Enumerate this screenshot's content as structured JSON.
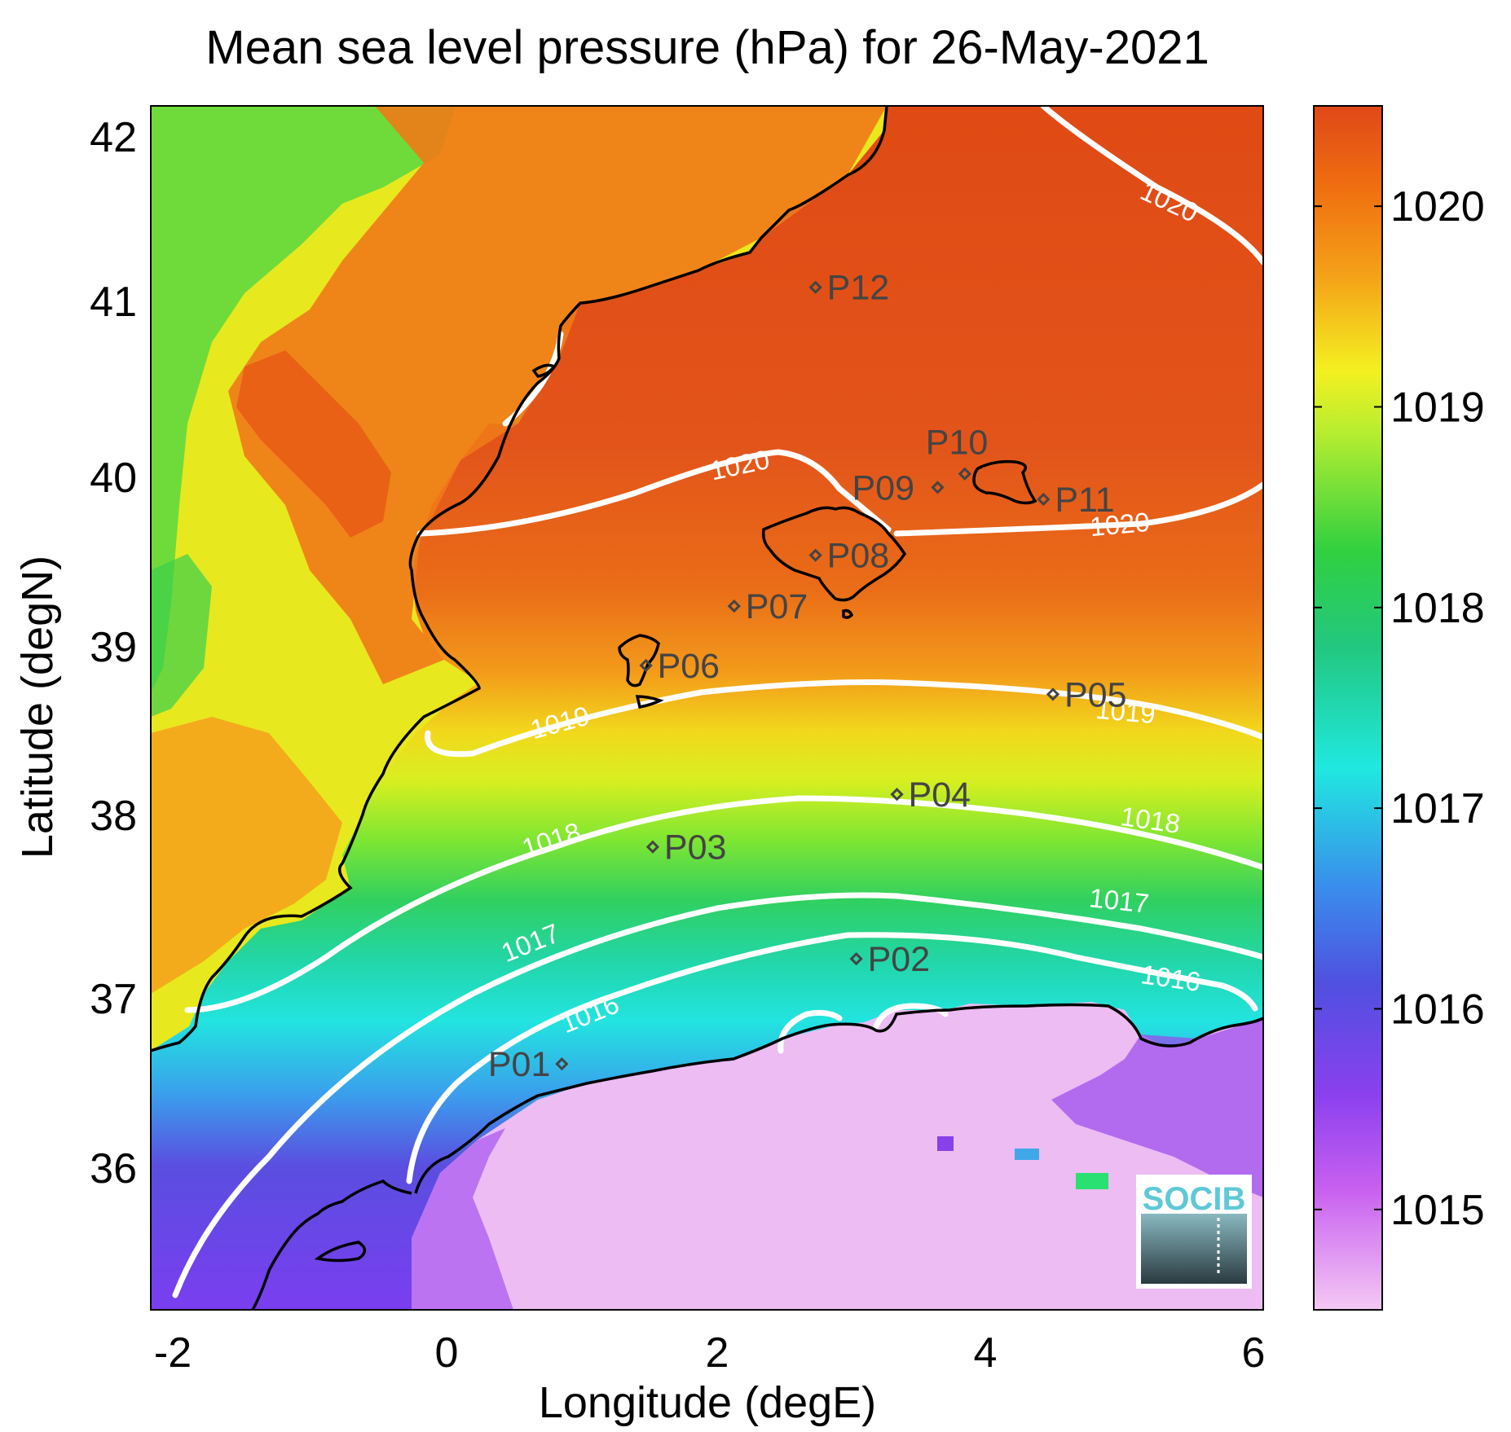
{
  "title": "Mean sea level pressure (hPa) for 26-May-2021",
  "xlabel": "Longitude (degE)",
  "ylabel": "Latitude (degN)",
  "x_ticks": [
    "-2",
    "0",
    "2",
    "4",
    "6"
  ],
  "y_ticks": [
    "36",
    "37",
    "38",
    "39",
    "40",
    "41",
    "42"
  ],
  "colorbar": {
    "ticks": [
      "1015",
      "1016",
      "1017",
      "1018",
      "1019",
      "1020"
    ],
    "range": [
      1014.5,
      1020.5
    ],
    "colormap": [
      "#f0c0f0",
      "#a040f0",
      "#5050e0",
      "#20e8e0",
      "#20d040",
      "#f0f020",
      "#f08010",
      "#e04010"
    ]
  },
  "contour_labels": [
    "1020",
    "1020",
    "1020",
    "1019",
    "1019",
    "1018",
    "1018",
    "1017",
    "1017",
    "1016",
    "1016"
  ],
  "stations": [
    {
      "id": "P01",
      "lon": 0.83,
      "lat": 36.55
    },
    {
      "id": "P02",
      "lon": 3.0,
      "lat": 37.17
    },
    {
      "id": "P03",
      "lon": 1.5,
      "lat": 37.83
    },
    {
      "id": "P04",
      "lon": 3.3,
      "lat": 38.14
    },
    {
      "id": "P05",
      "lon": 4.45,
      "lat": 38.73
    },
    {
      "id": "P06",
      "lon": 1.45,
      "lat": 38.9
    },
    {
      "id": "P07",
      "lon": 2.1,
      "lat": 39.25
    },
    {
      "id": "P08",
      "lon": 2.7,
      "lat": 39.55
    },
    {
      "id": "P09",
      "lon": 3.6,
      "lat": 39.95
    },
    {
      "id": "P10",
      "lon": 3.8,
      "lat": 40.03
    },
    {
      "id": "P11",
      "lon": 4.38,
      "lat": 39.88
    },
    {
      "id": "P12",
      "lon": 2.7,
      "lat": 41.13
    }
  ],
  "chart_data": {
    "type": "heatmap",
    "title": "Mean sea level pressure (hPa) for 26-May-2021",
    "xlabel": "Longitude (degE)",
    "ylabel": "Latitude (degN)",
    "xlim": [
      -2.2,
      6.0
    ],
    "ylim": [
      35.1,
      42.2
    ],
    "color_range": [
      1014.5,
      1020.5
    ],
    "contour_levels": [
      1016,
      1017,
      1018,
      1019,
      1020
    ]
  },
  "logo": {
    "text": "SOCIB"
  }
}
